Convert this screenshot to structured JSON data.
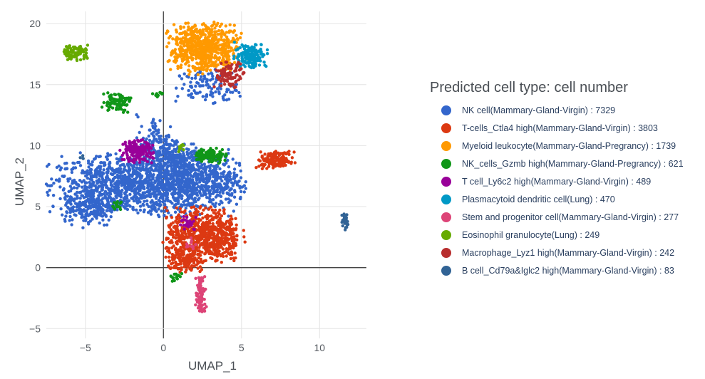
{
  "chart_data": {
    "type": "scatter",
    "title": "",
    "xlabel": "UMAP_1",
    "ylabel": "UMAP_2",
    "xlim": [
      -7.5,
      13
    ],
    "ylim": [
      -5.8,
      21
    ],
    "xticks": [
      {
        "value": -5,
        "label": "−5"
      },
      {
        "value": 0,
        "label": "0"
      },
      {
        "value": 5,
        "label": "5"
      },
      {
        "value": 10,
        "label": "10"
      }
    ],
    "yticks": [
      {
        "value": -5,
        "label": "−5"
      },
      {
        "value": 0,
        "label": "0"
      },
      {
        "value": 5,
        "label": "5"
      },
      {
        "value": 10,
        "label": "10"
      },
      {
        "value": 15,
        "label": "15"
      },
      {
        "value": 20,
        "label": "20"
      }
    ],
    "grid": true,
    "legend_title": "Predicted cell type: cell number",
    "legend_position": "right",
    "series": [
      {
        "name": "NK cell(Mammary-Gland-Virgin) : 7329",
        "color": "#3366cc",
        "clusters": [
          {
            "cx": -2.5,
            "cy": 6.8,
            "sx": 2.4,
            "sy": 1.2,
            "n": 900
          },
          {
            "cx": 1.5,
            "cy": 7.0,
            "sx": 1.6,
            "sy": 1.3,
            "n": 600
          },
          {
            "cx": -4.7,
            "cy": 5.0,
            "sx": 0.8,
            "sy": 0.8,
            "n": 220
          },
          {
            "cx": -0.3,
            "cy": 10.0,
            "sx": 0.7,
            "sy": 1.2,
            "n": 140
          },
          {
            "cx": 0.8,
            "cy": 9.2,
            "sx": 0.9,
            "sy": 0.6,
            "n": 120
          },
          {
            "cx": 2.8,
            "cy": 14.8,
            "sx": 1.0,
            "sy": 0.7,
            "n": 110
          },
          {
            "cx": 3.2,
            "cy": 7.0,
            "sx": 1.0,
            "sy": 0.8,
            "n": 140
          }
        ]
      },
      {
        "name": "T-cells_Ctla4 high(Mammary-Gland-Virgin) : 3803",
        "color": "#dc3912",
        "clusters": [
          {
            "cx": 2.6,
            "cy": 2.6,
            "sx": 1.2,
            "sy": 1.1,
            "n": 700
          },
          {
            "cx": 1.3,
            "cy": 0.7,
            "sx": 0.6,
            "sy": 0.5,
            "n": 120
          },
          {
            "cx": 7.2,
            "cy": 8.8,
            "sx": 0.6,
            "sy": 0.35,
            "n": 140
          }
        ]
      },
      {
        "name": "Myeloid leukocyte(Mammary-Gland-Pregrancy) : 1739",
        "color": "#ff9900",
        "clusters": [
          {
            "cx": 2.6,
            "cy": 18.0,
            "sx": 1.1,
            "sy": 1.0,
            "n": 650
          }
        ]
      },
      {
        "name": "NK_cells_Gzmb high(Mammary-Gland-Pregrancy) : 621",
        "color": "#109618",
        "clusters": [
          {
            "cx": 3.0,
            "cy": 9.2,
            "sx": 0.5,
            "sy": 0.3,
            "n": 110
          },
          {
            "cx": -3.0,
            "cy": 13.6,
            "sx": 0.45,
            "sy": 0.4,
            "n": 90
          },
          {
            "cx": -0.3,
            "cy": 14.2,
            "sx": 0.2,
            "sy": 0.1,
            "n": 12
          },
          {
            "cx": 0.8,
            "cy": -0.7,
            "sx": 0.3,
            "sy": 0.2,
            "n": 15
          },
          {
            "cx": -3.0,
            "cy": 5.1,
            "sx": 0.2,
            "sy": 0.2,
            "n": 15
          }
        ]
      },
      {
        "name": "T cell_Ly6c2 high(Mammary-Gland-Virgin) : 489",
        "color": "#990099",
        "clusters": [
          {
            "cx": -1.7,
            "cy": 9.5,
            "sx": 0.5,
            "sy": 0.45,
            "n": 180
          },
          {
            "cx": 1.6,
            "cy": 3.6,
            "sx": 0.3,
            "sy": 0.3,
            "n": 25
          }
        ]
      },
      {
        "name": "Plasmacytoid dendritic cell(Lung) : 470",
        "color": "#0099c6",
        "clusters": [
          {
            "cx": 5.6,
            "cy": 17.4,
            "sx": 0.5,
            "sy": 0.5,
            "n": 170
          }
        ]
      },
      {
        "name": "Stem and progenitor cell(Mammary-Gland-Virgin) : 277",
        "color": "#dd4477",
        "clusters": [
          {
            "cx": 2.4,
            "cy": -2.3,
            "sx": 0.16,
            "sy": 0.9,
            "n": 90
          },
          {
            "cx": 1.8,
            "cy": 1.8,
            "sx": 0.2,
            "sy": 0.3,
            "n": 12
          }
        ]
      },
      {
        "name": "Eosinophil granulocyte(Lung) : 249",
        "color": "#66aa00",
        "clusters": [
          {
            "cx": -5.6,
            "cy": 17.6,
            "sx": 0.4,
            "sy": 0.3,
            "n": 90
          },
          {
            "cx": 1.1,
            "cy": 9.9,
            "sx": 0.12,
            "sy": 0.2,
            "n": 10
          }
        ]
      },
      {
        "name": "Macrophage_Lyz1 high(Mammary-Gland-Virgin) : 242",
        "color": "#b82e2e",
        "clusters": [
          {
            "cx": 4.2,
            "cy": 15.8,
            "sx": 0.45,
            "sy": 0.5,
            "n": 95
          }
        ]
      },
      {
        "name": "B cell_Cd79a&Iglc2 high(Mammary-Gland-Virgin) : 83",
        "color": "#316395",
        "clusters": [
          {
            "cx": 11.6,
            "cy": 3.8,
            "sx": 0.12,
            "sy": 0.35,
            "n": 30
          },
          {
            "cx": -5.2,
            "cy": 9.0,
            "sx": 0.1,
            "sy": 0.1,
            "n": 4
          }
        ]
      }
    ]
  }
}
